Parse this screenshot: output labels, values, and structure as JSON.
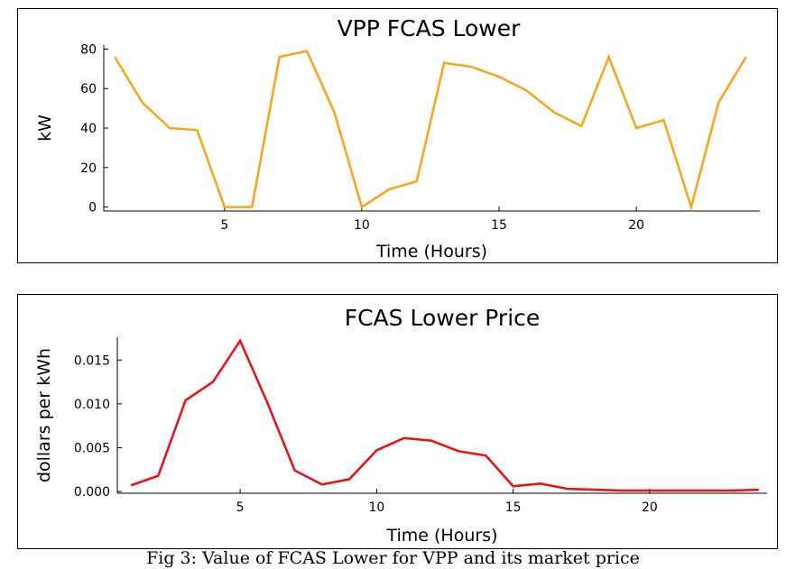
{
  "chart_data": [
    {
      "type": "line",
      "title": "VPP FCAS Lower",
      "xlabel": "Time (Hours)",
      "ylabel": "kW",
      "xlim": [
        0.6,
        24.5
      ],
      "ylim": [
        -2,
        82
      ],
      "x_ticks": [
        5,
        10,
        15,
        20
      ],
      "x_tick_labels": [
        "5",
        "10",
        "15",
        "20"
      ],
      "y_ticks": [
        0,
        20,
        40,
        60,
        80
      ],
      "y_tick_labels": [
        "0",
        "20",
        "40",
        "60",
        "80"
      ],
      "grid": false,
      "legend": "none",
      "series": [
        {
          "color": "#F5A623",
          "x": [
            1,
            2,
            3,
            4,
            5,
            6,
            7,
            8,
            9,
            10,
            11,
            12,
            13,
            14,
            15,
            16,
            17,
            18,
            19,
            20,
            21,
            22,
            23,
            24
          ],
          "values": [
            76,
            53,
            40,
            39,
            0,
            0,
            76,
            79,
            48,
            0,
            9,
            13,
            73,
            71,
            66,
            59,
            48,
            41,
            76,
            40,
            44,
            0,
            53,
            76
          ]
        }
      ]
    },
    {
      "type": "line",
      "title": "FCAS Lower Price",
      "xlabel": "Time (Hours)",
      "ylabel": "dollars per kWh",
      "xlim": [
        0.5,
        24.3
      ],
      "ylim": [
        -0.0002,
        0.0176
      ],
      "x_ticks": [
        5,
        10,
        15,
        20
      ],
      "x_tick_labels": [
        "5",
        "10",
        "15",
        "20"
      ],
      "y_ticks": [
        0,
        0.005,
        0.01,
        0.015
      ],
      "y_tick_labels": [
        "0.000",
        "0.005",
        "0.010",
        "0.015"
      ],
      "grid": false,
      "legend": "none",
      "series": [
        {
          "color": "#E3151C",
          "x": [
            1,
            2,
            3,
            4,
            5,
            6,
            7,
            8,
            9,
            10,
            11,
            12,
            13,
            14,
            15,
            16,
            17,
            18,
            19,
            20,
            21,
            22,
            23,
            24
          ],
          "values": [
            0.0007,
            0.0018,
            0.0104,
            0.0125,
            0.0172,
            0.0101,
            0.0024,
            0.0008,
            0.0014,
            0.0047,
            0.0061,
            0.0058,
            0.0046,
            0.0041,
            0.0006,
            0.0009,
            0.0003,
            0.0002,
            0.0001,
            0.0001,
            0.0001,
            0.0001,
            0.0001,
            0.0002
          ]
        }
      ]
    }
  ],
  "caption": "Fig 3: Value of FCAS Lower for VPP and its market price"
}
